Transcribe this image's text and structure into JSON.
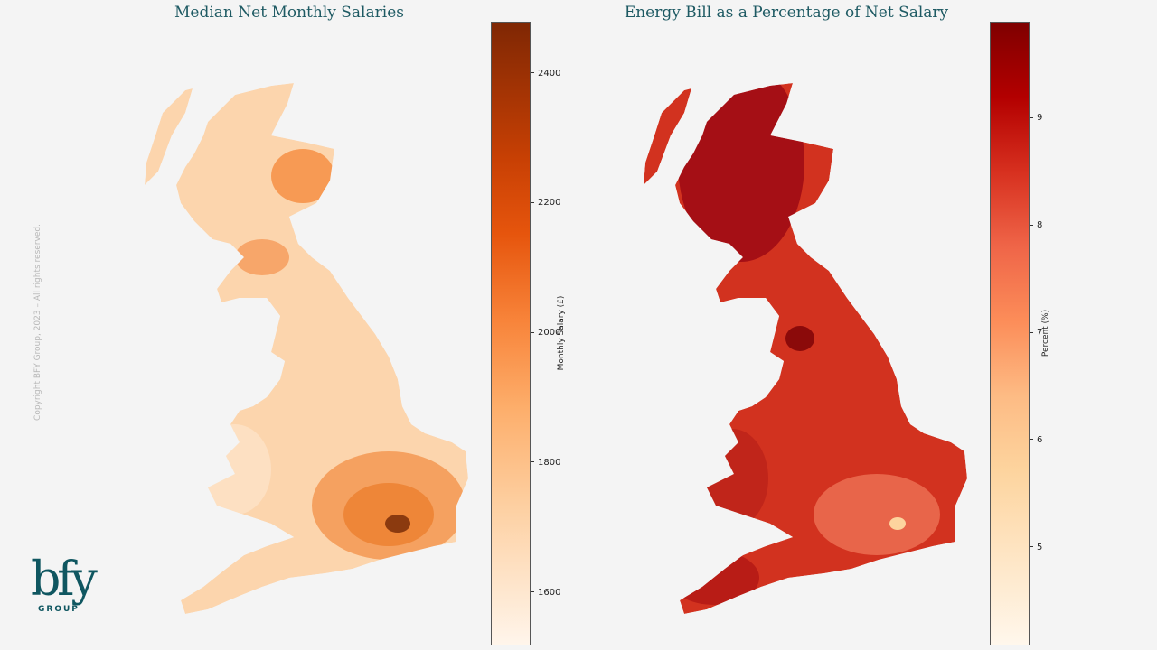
{
  "chart_data": [
    {
      "type": "heatmap",
      "subtype": "choropleth",
      "title": "Median Net Monthly Salaries",
      "colorbar_label": "Monthly Salary (£)",
      "colorbar_ticks": [
        1600,
        1800,
        2000,
        2200,
        2400
      ],
      "colorbar_range": [
        1520,
        2480
      ],
      "colormap": "Oranges",
      "base_color": "#fcd5ad",
      "accent_colors": [
        "#f79a54",
        "#f08a3e",
        "#8b3a0f"
      ]
    },
    {
      "type": "heatmap",
      "subtype": "choropleth",
      "title": "Energy Bill as a Percentage of Net Salary",
      "colorbar_label": "Percent (%)",
      "colorbar_ticks": [
        5,
        6,
        7,
        8,
        9
      ],
      "colorbar_range": [
        4.1,
        9.9
      ],
      "colormap": "OrRd",
      "base_color": "#d2321f",
      "accent_colors": [
        "#a50f15",
        "#e8654a",
        "#fdd49e"
      ]
    }
  ],
  "copyright": "Copyright BFY Group, 2023 – All rights reserved.",
  "logo": {
    "mark": "bfy",
    "sub": "GROUP"
  }
}
